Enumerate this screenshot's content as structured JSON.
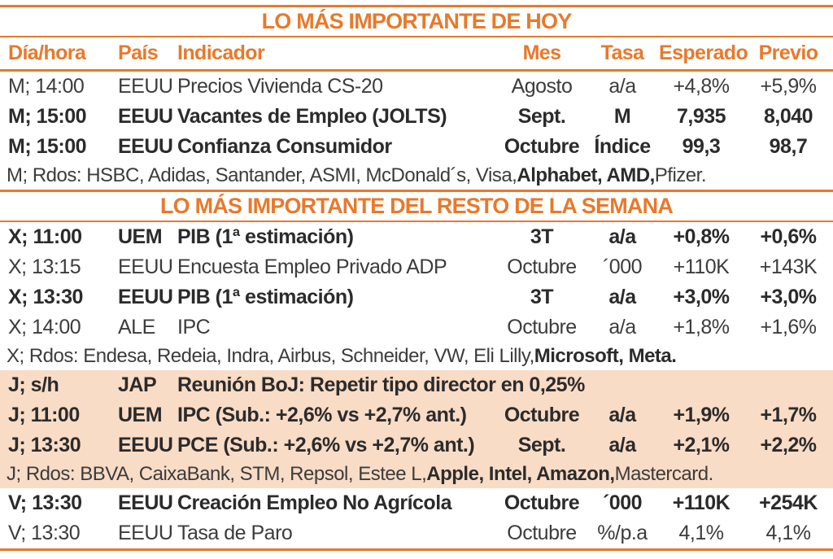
{
  "palette": {
    "accent_orange": "#e8792b",
    "highlight_peach": "#f9dcc6",
    "text_regular": "#3c3c3c",
    "text_bold": "#2b2b2b"
  },
  "table": {
    "headers": [
      "Día/hora",
      "País",
      "Indicador",
      "Mes",
      "Tasa",
      "Esperado",
      "Previo"
    ],
    "sections": [
      {
        "title": "LO MÁS IMPORTANTE DE HOY",
        "rows": [
          {
            "type": "data",
            "bold": false,
            "highlight": false,
            "dia": "M; 14:00",
            "pais": "EEUU",
            "indicador": "Precios Vivienda CS-20",
            "mes": "Agosto",
            "tasa": "a/a",
            "esperado": "+4,8%",
            "previo": "+5,9%"
          },
          {
            "type": "data",
            "bold": true,
            "highlight": false,
            "dia": "M; 15:00",
            "pais": "EEUU",
            "indicador": "Vacantes de Empleo (JOLTS)",
            "mes": "Sept.",
            "tasa": "M",
            "esperado": "7,935",
            "previo": "8,040"
          },
          {
            "type": "data",
            "bold": true,
            "highlight": false,
            "dia": "M; 15:00",
            "pais": "EEUU",
            "indicador": "Confianza Consumidor",
            "mes": "Octubre",
            "tasa": "Índice",
            "esperado": "99,3",
            "previo": "98,7"
          },
          {
            "type": "note",
            "highlight": false,
            "segments": [
              {
                "text": "M; Rdos: HSBC, Adidas, Santander, ASMI, McDonald´s, Visa, ",
                "bold": false
              },
              {
                "text": "Alphabet, AMD,",
                "bold": true
              },
              {
                "text": " Pfizer.",
                "bold": false
              }
            ]
          }
        ]
      },
      {
        "title": "LO MÁS IMPORTANTE DEL RESTO DE LA SEMANA",
        "rows": [
          {
            "type": "data",
            "bold": true,
            "highlight": false,
            "dia": "X; 11:00",
            "pais": "UEM",
            "indicador": "PIB (1ª estimación)",
            "mes": "3T",
            "tasa": "a/a",
            "esperado": "+0,8%",
            "previo": "+0,6%"
          },
          {
            "type": "data",
            "bold": false,
            "highlight": false,
            "dia": "X; 13:15",
            "pais": "EEUU",
            "indicador": "Encuesta Empleo Privado ADP",
            "mes": "Octubre",
            "tasa": "´000",
            "esperado": "+110K",
            "previo": "+143K"
          },
          {
            "type": "data",
            "bold": true,
            "highlight": false,
            "dia": "X; 13:30",
            "pais": "EEUU",
            "indicador": "PIB (1ª estimación)",
            "mes": "3T",
            "tasa": "a/a",
            "esperado": "+3,0%",
            "previo": "+3,0%"
          },
          {
            "type": "data",
            "bold": false,
            "highlight": false,
            "dia": "X; 14:00",
            "pais": "ALE",
            "indicador": "IPC",
            "mes": "Octubre",
            "tasa": "a/a",
            "esperado": "+1,8%",
            "previo": "+1,6%"
          },
          {
            "type": "note",
            "highlight": false,
            "segments": [
              {
                "text": "X; Rdos: Endesa, Redeia, Indra, Airbus, Schneider, VW, Eli Lilly, ",
                "bold": false
              },
              {
                "text": "Microsoft, Meta.",
                "bold": true
              }
            ]
          },
          {
            "type": "data",
            "bold": true,
            "highlight": true,
            "span_indicator": true,
            "dia": "J; s/h",
            "pais": "JAP",
            "indicador": "Reunión BoJ: Repetir tipo director en 0,25%",
            "mes": "",
            "tasa": "",
            "esperado": "",
            "previo": ""
          },
          {
            "type": "data",
            "bold": true,
            "highlight": true,
            "dia": "J; 11:00",
            "pais": "UEM",
            "indicador": "IPC (Sub.: +2,6% vs +2,7% ant.)",
            "mes": "Octubre",
            "tasa": "a/a",
            "esperado": "+1,9%",
            "previo": "+1,7%"
          },
          {
            "type": "data",
            "bold": true,
            "highlight": true,
            "dia": "J; 13:30",
            "pais": "EEUU",
            "indicador": "PCE (Sub.: +2,6% vs +2,7% ant.)",
            "mes": "Sept.",
            "tasa": "a/a",
            "esperado": "+2,1%",
            "previo": "+2,2%"
          },
          {
            "type": "note",
            "highlight": true,
            "segments": [
              {
                "text": "J; Rdos: BBVA, CaixaBank, STM, Repsol, Estee L, ",
                "bold": false
              },
              {
                "text": "Apple, Intel, Amazon,",
                "bold": true
              },
              {
                "text": " Mastercard.",
                "bold": false
              }
            ]
          },
          {
            "type": "data",
            "bold": true,
            "highlight": false,
            "dia": "V; 13:30",
            "pais": "EEUU",
            "indicador": "Creación Empleo No Agrícola",
            "mes": "Octubre",
            "tasa": "´000",
            "esperado": "+110K",
            "previo": "+254K"
          },
          {
            "type": "data",
            "bold": false,
            "highlight": false,
            "dia": "V; 13:30",
            "pais": "EEUU",
            "indicador": "Tasa de Paro",
            "mes": "Octubre",
            "tasa": "%/p.a",
            "esperado": "4,1%",
            "previo": "4,1%"
          }
        ]
      }
    ]
  }
}
